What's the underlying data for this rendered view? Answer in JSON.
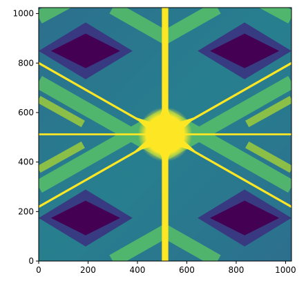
{
  "chart_data": {
    "type": "image",
    "xlim": [
      0,
      1024
    ],
    "ylim": [
      0,
      1024
    ],
    "xticks": [
      0,
      200,
      400,
      600,
      800,
      1000
    ],
    "yticks": [
      0,
      200,
      400,
      600,
      800,
      1000
    ]
  }
}
